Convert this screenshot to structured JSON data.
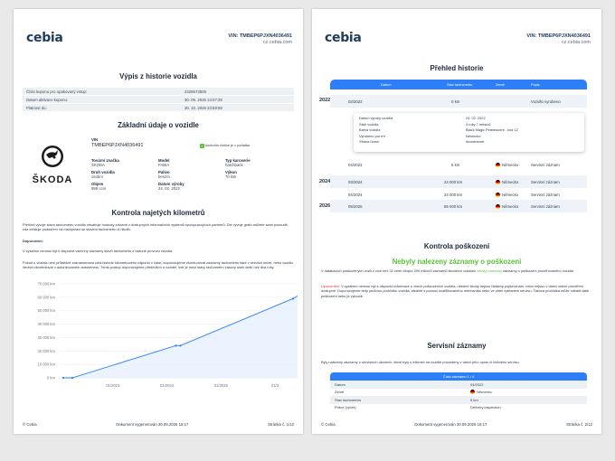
{
  "header": {
    "logo": "cebia",
    "vin_line": "VIN: TMBEP6PJXN4036491",
    "site": "cz.cebia.com"
  },
  "page1": {
    "title": "Výpis z historie vozidla",
    "coupon_rows": [
      {
        "label": "Číslo kuponu pro opakovaný vstup:",
        "value": "2326573509"
      },
      {
        "label": "Datum aktivace kuponu:",
        "value": "30. 09. 2026 14:07:28"
      },
      {
        "label": "Platnost do:",
        "value": "30. 10. 2026 23:59:59"
      }
    ],
    "basic_title": "Základní údaje o vozidle",
    "brand_logo_text": "ŠKODA",
    "vin_label": "VIN",
    "vin_value": "TMBEP6PJXN4036491",
    "vin_check": "kontrolní číslice je v pořádku",
    "fields": [
      {
        "label": "Tovární značka",
        "value": "ŠKODA"
      },
      {
        "label": "Model",
        "value": "FABIA"
      },
      {
        "label": "Typ karoserie",
        "value": "hatchback"
      },
      {
        "label": "Druh vozidla",
        "value": "osobní"
      },
      {
        "label": "Palivo",
        "value": "benzín"
      },
      {
        "label": "Výkon",
        "value": "70 kW"
      },
      {
        "label": "Objem",
        "value": "999 ccm"
      },
      {
        "label": "Datum výroby",
        "value": "24. 02. 2022"
      }
    ],
    "km_title": "Kontrola najetých kilometrů",
    "km_intro": "Přehled vývoje stavu tachometru vozidla obsahuje hodnoty získané z dostupných informačních systémů spolupracujících partnerů. Dle vývoje grafu můžete sami posoudit, zda existuje podezření na manipulaci se stavem tachometru či nikoliv.",
    "km_heading": "Doporučení:",
    "km_p1": "V systému nemusí být k dispozici všechny záznamy stavů tachometru z historie provozu vozidla.",
    "km_p2": "Pokud u vozidla není průběžně zaznamenaná celá historie kilometrového nájezdu v čase, doporučujeme zkontrolovat záznamy tachometru také v servisní knize, nebo vozidlo nechat zkontrolovat v autorizovaném autoservisu. Tento postup doporučujeme především u vozidel, kde je mezi stavy tachometru časový úsek delší než dva roky.",
    "footer": {
      "left": "© Cebia",
      "center": "Dokument vygenerován 30.09.2026 15:17",
      "right": "Stránka č. 1/12"
    }
  },
  "chart_data": {
    "type": "line",
    "x": [
      "02/2022",
      "04/2022",
      "03/2024",
      "04/2024",
      "05/2026"
    ],
    "values": [
      0,
      5,
      24000,
      24000,
      59000
    ],
    "y_ticks": [
      "0 km",
      "10 000 km",
      "20 000 km",
      "30 000 km",
      "40 000 km",
      "50 000 km",
      "60 000 km",
      "70 000 km"
    ],
    "x_ticks": [
      "01/2023",
      "01/2024",
      "01/2025",
      "01/2"
    ],
    "ylim": [
      0,
      70000
    ],
    "grid": true,
    "color": "#2d7ff9"
  },
  "page2": {
    "history_title": "Přehled historie",
    "columns": [
      "Datum",
      "Stav tachometru",
      "Země",
      "Popis"
    ],
    "years": [
      "2022",
      "2024",
      "2026"
    ],
    "rows": [
      {
        "date": "02/2022",
        "km": "0 km",
        "country": "",
        "desc": "Vozidlo vyrobeno"
      },
      {
        "date": "04/2022",
        "km": "5 km",
        "country": "Německo",
        "desc": "Servisní záznam"
      },
      {
        "date": "03/2024",
        "km": "24 000 km",
        "country": "Německo",
        "desc": "Servisní záznam"
      },
      {
        "date": "04/2024",
        "km": "24 000 km",
        "country": "Německo",
        "desc": "Servisní záznam"
      },
      {
        "date": "05/2026",
        "km": "59 000 km",
        "country": "Německo",
        "desc": "Servisní záznam"
      }
    ],
    "popup": [
      {
        "label": "Datum výroby vozidla",
        "value": "24. 02. 2022"
      },
      {
        "label": "Stáří vozidla",
        "value": "4 roky 7 měsíců"
      },
      {
        "label": "Barva vozidla",
        "value": "Black Magic Pearlescent - kód 1Z"
      },
      {
        "label": "Vyrobeno pro trh",
        "value": "Německo"
      },
      {
        "label": "Strana řízení",
        "value": "levostranné"
      }
    ],
    "damage_title": "Kontrola poškození",
    "damage_result": "Nebyly nalezeny záznamy o poškození",
    "damage_p1_a": "V databázích poškozených vozů z více než 32 zemí čítající 200 milionů záznamů škodních událostí",
    "damage_p1_b": "nebyly nalezeny",
    "damage_p1_c": "záznamy o poškození prověřovaného vozidla.",
    "damage_p2_a": "Upozornění:",
    "damage_p2_b": "V systému nemusí být k dispozici informace o všech poškozeních vozidla, některé škody nejsou hlášeny pojišťovnám, nebo nejsou v rámci online prověření dostupné. Doporučujeme tedy pečlivou prohlídku vozidla, ideálně s pomocí kvalifikovaného mechanika nebo ve vámi vybraném servisu. Taková prohlídka může odhalit další poškození nebo je vyloučit.",
    "service_title": "Servisní záznamy",
    "service_intro": "Byly nalezeny záznamy o servisních úkonech, které byly s mileostí na vozidle provedeny v rámci jeho oprav či běžného servisu.",
    "service_head": "Číslo záznamu 1 / 4",
    "service_rows": [
      {
        "label": "Datum",
        "value": "04/2022"
      },
      {
        "label": "Země",
        "value": "Německo"
      },
      {
        "label": "Stav tachometru",
        "value": "5 km"
      },
      {
        "label": "Práce (výčet)",
        "value": "Delivery inspection"
      }
    ],
    "footer": {
      "left": "© Cebia",
      "center": "Dokument vygenerován 30.09.2026 15:17",
      "right": "Stránka č. 2/12"
    }
  }
}
